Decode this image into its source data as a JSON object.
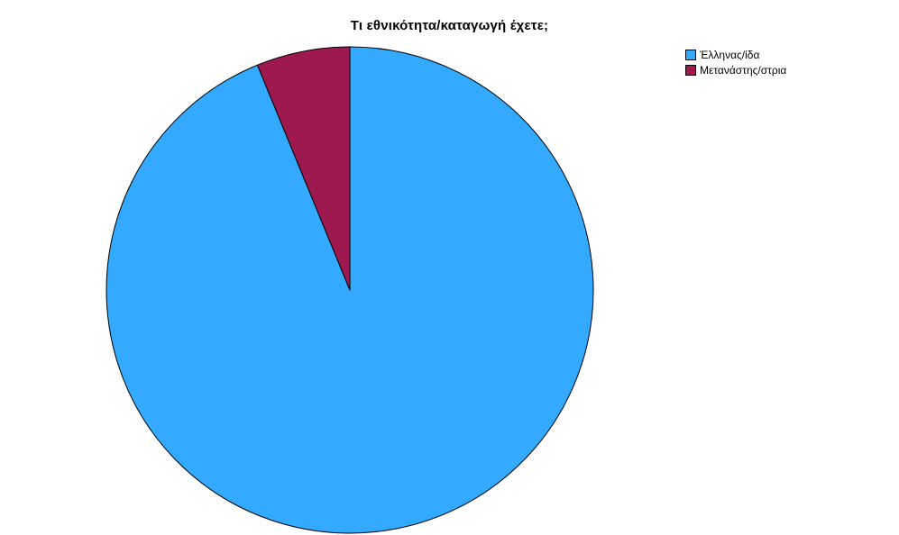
{
  "chart_data": {
    "type": "pie",
    "title": "Τι εθνικότητα/καταγωγή έχετε;",
    "categories": [
      "Έλληνας/ίδα",
      "Μετανάστης/στρια"
    ],
    "values": [
      93.8,
      6.2
    ],
    "colors": [
      "#33aaff",
      "#9e1a4e"
    ],
    "start_angle_deg": 0,
    "direction": "clockwise",
    "legend_position": "top-right",
    "legend": [
      {
        "label": "Έλληνας/ίδα",
        "color": "#33aaff"
      },
      {
        "label": "Μετανάστης/στρια",
        "color": "#9e1a4e"
      }
    ]
  }
}
